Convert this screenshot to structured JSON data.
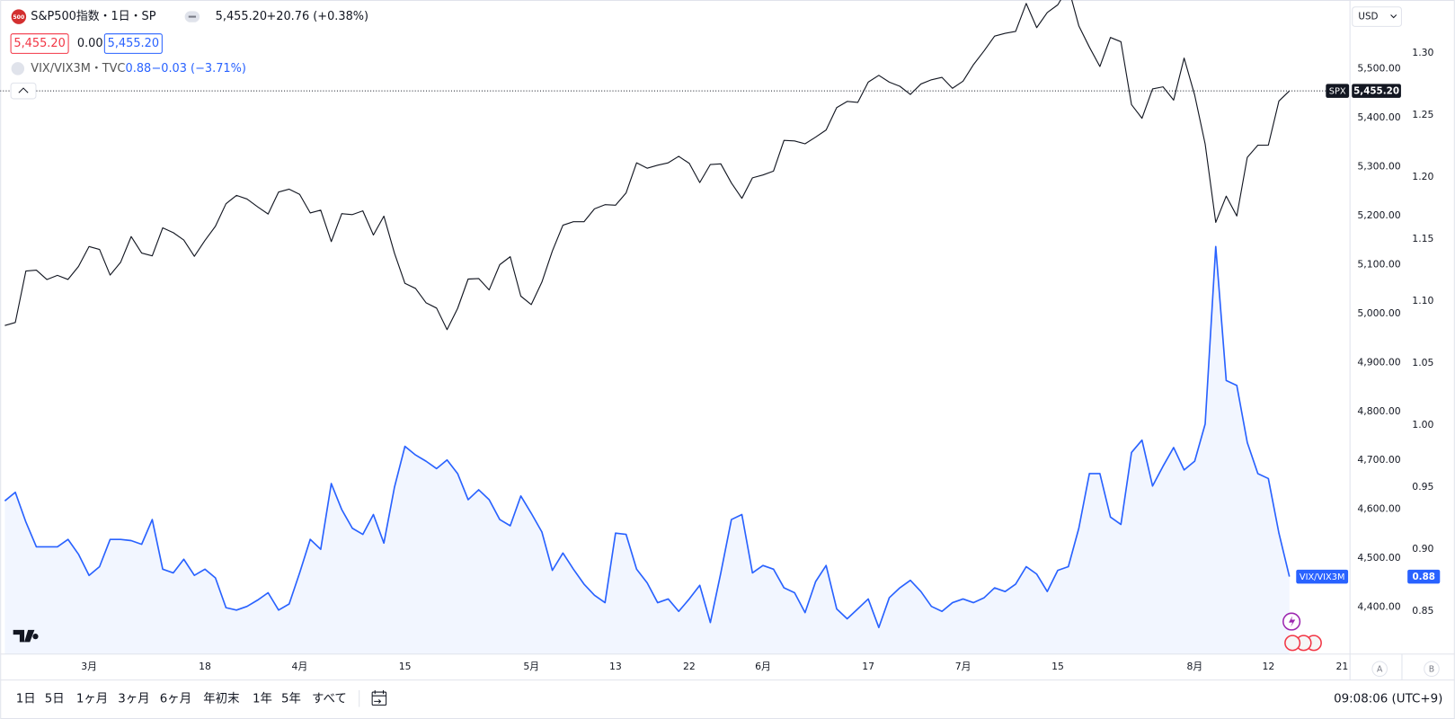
{
  "header": {
    "logo": "500",
    "symbol": "S&P500指数・1日・SP",
    "last": "5,455.20",
    "change": "+20.76 (+0.38%)",
    "bid": "5,455.20",
    "spread": "0.00",
    "ask": "5,455.20"
  },
  "currency": "USD",
  "scale_buttons": [
    "A",
    "B"
  ],
  "toolbar": {
    "ranges": [
      "1日",
      "5日",
      "1ヶ月",
      "3ヶ月",
      "6ヶ月",
      "年初末",
      "1年",
      "5年",
      "すべて"
    ],
    "time": "09:08:06 (UTC+9)"
  },
  "chart_data": {
    "type": "line",
    "grid": false,
    "xlim": [
      -0.44,
      127.75
    ],
    "xticks": [
      {
        "value": 8,
        "label": "3月"
      },
      {
        "value": 19,
        "label": "18"
      },
      {
        "value": 28,
        "label": "4月"
      },
      {
        "value": 38,
        "label": "15"
      },
      {
        "value": 50,
        "label": "5月"
      },
      {
        "value": 58,
        "label": "13"
      },
      {
        "value": 65,
        "label": "22"
      },
      {
        "value": 72,
        "label": "6月"
      },
      {
        "value": 82,
        "label": "17"
      },
      {
        "value": 91,
        "label": "7月"
      },
      {
        "value": 100,
        "label": "15"
      },
      {
        "value": 113,
        "label": "8月"
      },
      {
        "value": 120,
        "label": "12"
      },
      {
        "value": 127,
        "label": "21"
      }
    ],
    "ylim": [
      4304,
      5641
    ],
    "yticks": [
      {
        "value": 4400,
        "label": "4,400.00"
      },
      {
        "value": 4500,
        "label": "4,500.00"
      },
      {
        "value": 4600,
        "label": "4,600.00"
      },
      {
        "value": 4700,
        "label": "4,700.00"
      },
      {
        "value": 4800,
        "label": "4,800.00"
      },
      {
        "value": 4900,
        "label": "4,900.00"
      },
      {
        "value": 5000,
        "label": "5,000.00"
      },
      {
        "value": 5100,
        "label": "5,100.00"
      },
      {
        "value": 5200,
        "label": "5,200.00"
      },
      {
        "value": 5300,
        "label": "5,300.00"
      },
      {
        "value": 5400,
        "label": "5,400.00"
      },
      {
        "value": 5500,
        "label": "5,500.00"
      }
    ],
    "y2lim": [
      0.8156,
      1.3426
    ],
    "y2ticks": [
      0.85,
      {
        "value": 0.9,
        "label": "0.90"
      },
      0.95,
      {
        "value": 1.0,
        "label": "1.00"
      },
      1.05,
      {
        "value": 1.1,
        "label": "1.10"
      },
      1.15,
      {
        "value": 1.2,
        "label": "1.20"
      },
      1.25,
      {
        "value": 1.3,
        "label": "1.30"
      }
    ],
    "series": [
      {
        "name": "SPX",
        "color": "#131722",
        "last_value_label": "5,455.20",
        "values": [
          4975.51,
          4981.8,
          5087.03,
          5088.8,
          5069.53,
          5078.18,
          5069.76,
          5096.27,
          5137.08,
          5130.95,
          5078.65,
          5104.76,
          5157.36,
          5123.69,
          5117.94,
          5175.27,
          5165.31,
          5150.48,
          5117.09,
          5149.42,
          5178.51,
          5224.62,
          5241.53,
          5234.18,
          5218.19,
          5203.58,
          5248.49,
          5254.35,
          5243.77,
          5205.81,
          5211.49,
          5147.21,
          5204.34,
          5202.39,
          5209.91,
          5160.64,
          5199.06,
          5123.41,
          5061.82,
          5051.41,
          5022.21,
          5011.12,
          4967.23,
          5010.6,
          5070.55,
          5071.63,
          5048.42,
          5099.96,
          5116.17,
          5035.69,
          5018.39,
          5064.2,
          5127.79,
          5180.74,
          5187.7,
          5187.67,
          5214.08,
          5222.68,
          5221.42,
          5246.68,
          5308.15,
          5297.1,
          5303.27,
          5308.13,
          5321.41,
          5307.01,
          5267.84,
          5304.72,
          5306.04,
          5266.95,
          5235.48,
          5277.51,
          5283.4,
          5291.34,
          5354.03,
          5352.96,
          5346.99,
          5360.79,
          5375.32,
          5421.03,
          5433.74,
          5431.6,
          5473.23,
          5487.03,
          5473.17,
          5464.62,
          5447.87,
          5469.3,
          5477.9,
          5482.87,
          5460.48,
          5475.09,
          5509.01,
          5537.02,
          5567.19,
          5572.85,
          5576.98,
          5633.91,
          5584.54,
          5615.35,
          5631.22,
          5667.2,
          5588.27,
          5544.59,
          5505.0,
          5564.41,
          5555.74,
          5427.13,
          5399.22,
          5459.1,
          5463.54,
          5436.44,
          5522.3,
          5446.68,
          5346.56,
          5186.33,
          5240.03,
          5199.5,
          5319.31,
          5344.16,
          5344.39,
          5434.43,
          5455.2
        ]
      },
      {
        "name": "VIX/VIX3M",
        "color": "#2962ff",
        "axis": "y2",
        "area": true,
        "legend_title": "VIX/VIX3M・TVC",
        "last_value_label": "0.88",
        "change": "−0.03 (−3.71%)",
        "values": [
          0.939,
          0.946,
          0.922,
          0.902,
          0.902,
          0.902,
          0.908,
          0.896,
          0.879,
          0.886,
          0.908,
          0.908,
          0.907,
          0.904,
          0.924,
          0.884,
          0.881,
          0.892,
          0.879,
          0.884,
          0.877,
          0.853,
          0.851,
          0.854,
          0.859,
          0.865,
          0.851,
          0.856,
          0.881,
          0.908,
          0.9,
          0.953,
          0.932,
          0.917,
          0.912,
          0.928,
          0.905,
          0.95,
          0.983,
          0.976,
          0.971,
          0.965,
          0.972,
          0.961,
          0.94,
          0.948,
          0.94,
          0.924,
          0.919,
          0.943,
          0.929,
          0.914,
          0.883,
          0.897,
          0.884,
          0.872,
          0.863,
          0.857,
          0.913,
          0.912,
          0.884,
          0.873,
          0.857,
          0.86,
          0.85,
          0.86,
          0.871,
          0.841,
          0.881,
          0.924,
          0.928,
          0.881,
          0.887,
          0.884,
          0.869,
          0.865,
          0.849,
          0.874,
          0.887,
          0.852,
          0.844,
          0.852,
          0.86,
          0.837,
          0.861,
          0.869,
          0.875,
          0.866,
          0.854,
          0.85,
          0.857,
          0.86,
          0.857,
          0.861,
          0.869,
          0.866,
          0.872,
          0.886,
          0.88,
          0.866,
          0.883,
          0.886,
          0.917,
          0.961,
          0.961,
          0.926,
          0.92,
          0.978,
          0.988,
          0.951,
          0.967,
          0.982,
          0.964,
          0.971,
          1.001,
          1.144,
          1.036,
          1.032,
          0.986,
          0.961,
          0.957,
          0.913,
          0.878
        ]
      }
    ]
  }
}
